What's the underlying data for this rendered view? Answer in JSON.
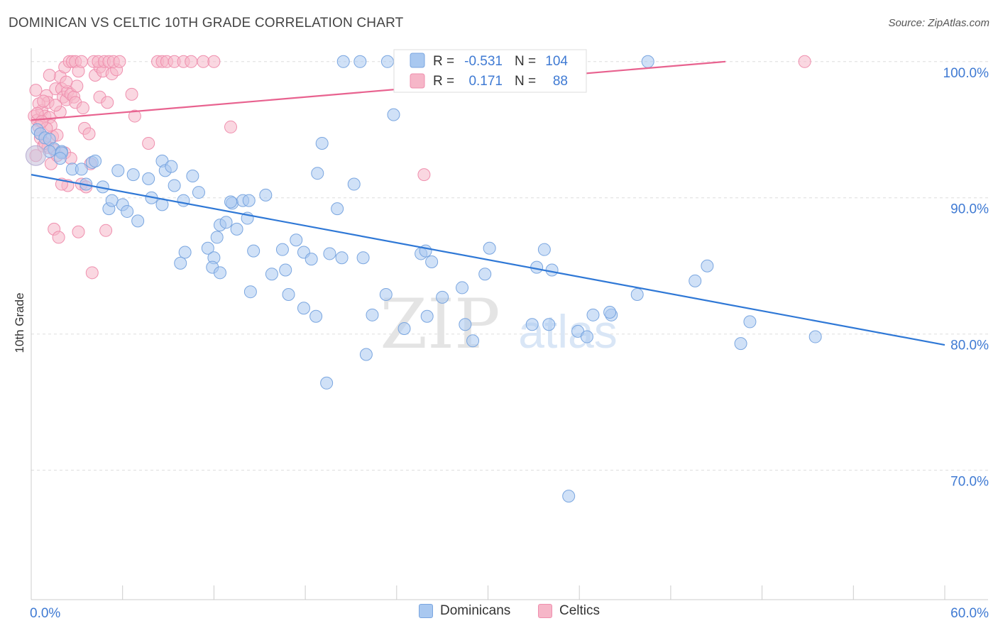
{
  "header": {
    "title": "DOMINICAN VS CELTIC 10TH GRADE CORRELATION CHART",
    "source": "Source: ZipAtlas.com"
  },
  "watermark": {
    "zip": "ZIP",
    "atlas": "atlas"
  },
  "legend": {
    "rows": [
      {
        "r_label": "R =",
        "r_value": "-0.531",
        "n_label": "N =",
        "n_value": "104"
      },
      {
        "r_label": "R =",
        "r_value": "0.171",
        "n_label": "N =",
        "n_value": "88"
      }
    ]
  },
  "colors": {
    "blue_fill": "#a9c8f0",
    "blue_stroke": "#7aa6e0",
    "blue_line": "#2f78d6",
    "pink_fill": "#f6b6c8",
    "pink_stroke": "#ef8fae",
    "pink_line": "#e8628f",
    "tick_label": "#3f7ad3",
    "grid": "#dddddd"
  },
  "chart_data": {
    "type": "scatter",
    "title": "DOMINICAN VS CELTIC 10TH GRADE CORRELATION CHART",
    "ylabel": "10th Grade",
    "xlabel": "",
    "xlim": [
      0,
      60
    ],
    "ylim": [
      60.5,
      101.5
    ],
    "x_tick_labels": [
      {
        "value": 0,
        "label": "0.0%"
      },
      {
        "value": 60,
        "label": "60.0%"
      }
    ],
    "y_tick_labels": [
      {
        "value": 100,
        "label": "100.0%"
      },
      {
        "value": 90,
        "label": "90.0%"
      },
      {
        "value": 80,
        "label": "80.0%"
      },
      {
        "value": 70,
        "label": "70.0%"
      }
    ],
    "grid": true,
    "legend_position": "top-center",
    "series": [
      {
        "name": "Dominicans",
        "color": "#a9c8f0",
        "r": -0.531,
        "n": 104,
        "trend": {
          "x": [
            0,
            60
          ],
          "y": [
            91.7,
            79.2
          ]
        },
        "points": [
          [
            0.4,
            95.0
          ],
          [
            0.6,
            94.7
          ],
          [
            0.9,
            94.4
          ],
          [
            1.2,
            94.3
          ],
          [
            1.5,
            93.6
          ],
          [
            1.2,
            93.4
          ],
          [
            2.0,
            93.4
          ],
          [
            2.0,
            93.3
          ],
          [
            1.9,
            92.9
          ],
          [
            2.7,
            92.1
          ],
          [
            3.3,
            92.1
          ],
          [
            4.0,
            92.6
          ],
          [
            4.2,
            92.7
          ],
          [
            3.6,
            91.0
          ],
          [
            4.7,
            90.8
          ],
          [
            5.7,
            92.0
          ],
          [
            6.7,
            91.7
          ],
          [
            7.7,
            91.4
          ],
          [
            8.6,
            92.7
          ],
          [
            8.8,
            92.0
          ],
          [
            9.2,
            92.3
          ],
          [
            10.6,
            91.6
          ],
          [
            5.1,
            89.2
          ],
          [
            5.3,
            89.8
          ],
          [
            6.0,
            89.5
          ],
          [
            6.3,
            89.0
          ],
          [
            7.0,
            88.3
          ],
          [
            7.9,
            90.0
          ],
          [
            8.6,
            89.5
          ],
          [
            9.4,
            90.9
          ],
          [
            10.0,
            89.8
          ],
          [
            11.0,
            90.4
          ],
          [
            13.2,
            89.6
          ],
          [
            13.9,
            89.8
          ],
          [
            14.3,
            89.8
          ],
          [
            15.4,
            90.2
          ],
          [
            12.2,
            87.1
          ],
          [
            12.4,
            88.0
          ],
          [
            12.8,
            88.2
          ],
          [
            13.5,
            87.7
          ],
          [
            14.2,
            88.5
          ],
          [
            10.1,
            86.0
          ],
          [
            11.6,
            86.3
          ],
          [
            12.0,
            85.6
          ],
          [
            9.8,
            85.2
          ],
          [
            11.9,
            84.9
          ],
          [
            12.4,
            84.5
          ],
          [
            14.6,
            86.1
          ],
          [
            15.8,
            84.4
          ],
          [
            16.5,
            86.2
          ],
          [
            16.7,
            84.7
          ],
          [
            17.4,
            86.9
          ],
          [
            17.9,
            86.0
          ],
          [
            18.4,
            85.5
          ],
          [
            19.6,
            85.9
          ],
          [
            20.4,
            85.6
          ],
          [
            21.8,
            85.6
          ],
          [
            16.9,
            82.9
          ],
          [
            17.9,
            81.9
          ],
          [
            18.7,
            81.3
          ],
          [
            14.4,
            83.1
          ],
          [
            13.1,
            89.7
          ],
          [
            20.1,
            89.2
          ],
          [
            23.8,
            96.1
          ],
          [
            21.2,
            91.0
          ],
          [
            18.8,
            91.8
          ],
          [
            19.1,
            94.0
          ],
          [
            25.6,
            85.9
          ],
          [
            25.9,
            86.1
          ],
          [
            26.3,
            85.3
          ],
          [
            30.1,
            86.3
          ],
          [
            29.8,
            84.4
          ],
          [
            33.7,
            86.2
          ],
          [
            34.2,
            84.7
          ],
          [
            22.4,
            81.4
          ],
          [
            26.0,
            81.3
          ],
          [
            24.5,
            80.4
          ],
          [
            28.5,
            80.7
          ],
          [
            29.0,
            79.5
          ],
          [
            27.0,
            82.7
          ],
          [
            23.3,
            82.9
          ],
          [
            36.9,
            81.4
          ],
          [
            38.1,
            81.4
          ],
          [
            39.8,
            82.9
          ],
          [
            38.0,
            81.6
          ],
          [
            34.0,
            80.7
          ],
          [
            35.9,
            80.2
          ],
          [
            36.5,
            79.8
          ],
          [
            43.6,
            83.9
          ],
          [
            47.2,
            80.9
          ],
          [
            46.6,
            79.3
          ],
          [
            51.5,
            79.8
          ],
          [
            33.2,
            84.9
          ],
          [
            44.4,
            85.0
          ],
          [
            22.0,
            78.5
          ],
          [
            19.4,
            76.4
          ],
          [
            35.3,
            68.1
          ],
          [
            20.5,
            100.0
          ],
          [
            21.6,
            100.0
          ],
          [
            23.4,
            100.0
          ],
          [
            24.5,
            100.0
          ],
          [
            40.5,
            100.0
          ],
          [
            28.3,
            83.4
          ],
          [
            32.9,
            80.7
          ]
        ]
      },
      {
        "name": "Celtics",
        "color": "#f6b6c8",
        "r": 0.171,
        "n": 88,
        "trend": {
          "x": [
            0,
            45.6
          ],
          "y": [
            95.7,
            100.0
          ]
        },
        "points": [
          [
            0.2,
            96.0
          ],
          [
            0.4,
            95.7
          ],
          [
            0.5,
            95.2
          ],
          [
            0.7,
            96.4
          ],
          [
            0.9,
            96.0
          ],
          [
            1.0,
            97.5
          ],
          [
            1.1,
            97.0
          ],
          [
            1.2,
            95.9
          ],
          [
            1.3,
            95.3
          ],
          [
            0.6,
            94.4
          ],
          [
            0.8,
            93.8
          ],
          [
            1.1,
            93.7
          ],
          [
            1.3,
            92.5
          ],
          [
            1.5,
            93.5
          ],
          [
            1.7,
            93.1
          ],
          [
            1.4,
            94.5
          ],
          [
            1.6,
            98.0
          ],
          [
            1.9,
            98.9
          ],
          [
            2.0,
            98.0
          ],
          [
            2.1,
            97.4
          ],
          [
            2.2,
            99.6
          ],
          [
            2.3,
            97.2
          ],
          [
            2.4,
            97.8
          ],
          [
            2.6,
            97.6
          ],
          [
            2.8,
            97.4
          ],
          [
            2.9,
            97.0
          ],
          [
            2.5,
            100.0
          ],
          [
            2.7,
            100.0
          ],
          [
            2.9,
            100.0
          ],
          [
            3.1,
            99.3
          ],
          [
            3.5,
            95.1
          ],
          [
            3.8,
            94.7
          ],
          [
            3.3,
            91.0
          ],
          [
            3.6,
            90.8
          ],
          [
            2.4,
            90.9
          ],
          [
            1.5,
            87.7
          ],
          [
            1.8,
            87.1
          ],
          [
            3.1,
            87.5
          ],
          [
            4.0,
            84.5
          ],
          [
            4.5,
            97.4
          ],
          [
            5.0,
            97.0
          ],
          [
            4.2,
            99.0
          ],
          [
            4.5,
            99.6
          ],
          [
            4.7,
            99.3
          ],
          [
            5.3,
            99.1
          ],
          [
            5.6,
            99.4
          ],
          [
            4.1,
            100.0
          ],
          [
            4.4,
            100.0
          ],
          [
            4.8,
            100.0
          ],
          [
            5.1,
            100.0
          ],
          [
            5.4,
            100.0
          ],
          [
            5.8,
            100.0
          ],
          [
            6.6,
            97.6
          ],
          [
            6.8,
            96.0
          ],
          [
            7.7,
            94.0
          ],
          [
            8.3,
            100.0
          ],
          [
            8.6,
            100.0
          ],
          [
            8.9,
            100.0
          ],
          [
            9.4,
            100.0
          ],
          [
            10.0,
            100.0
          ],
          [
            10.5,
            100.0
          ],
          [
            11.3,
            100.0
          ],
          [
            12.0,
            100.0
          ],
          [
            13.1,
            95.2
          ],
          [
            4.9,
            87.6
          ],
          [
            25.8,
            91.7
          ],
          [
            50.8,
            100.0
          ],
          [
            0.3,
            97.9
          ],
          [
            0.5,
            96.9
          ],
          [
            0.8,
            97.1
          ],
          [
            1.9,
            96.3
          ],
          [
            2.2,
            93.3
          ],
          [
            0.3,
            93.1
          ],
          [
            0.6,
            94.7
          ],
          [
            2.6,
            92.9
          ],
          [
            1.0,
            95.1
          ],
          [
            1.7,
            94.6
          ],
          [
            0.4,
            96.2
          ],
          [
            1.2,
            99.0
          ],
          [
            3.0,
            98.2
          ],
          [
            3.4,
            96.6
          ],
          [
            0.9,
            94.0
          ],
          [
            2.0,
            91.0
          ],
          [
            3.9,
            92.5
          ],
          [
            0.7,
            95.6
          ],
          [
            1.6,
            96.8
          ],
          [
            2.3,
            98.5
          ],
          [
            3.3,
            100.0
          ]
        ]
      }
    ]
  },
  "bottom_legend": {
    "items": [
      "Dominicans",
      "Celtics"
    ]
  }
}
